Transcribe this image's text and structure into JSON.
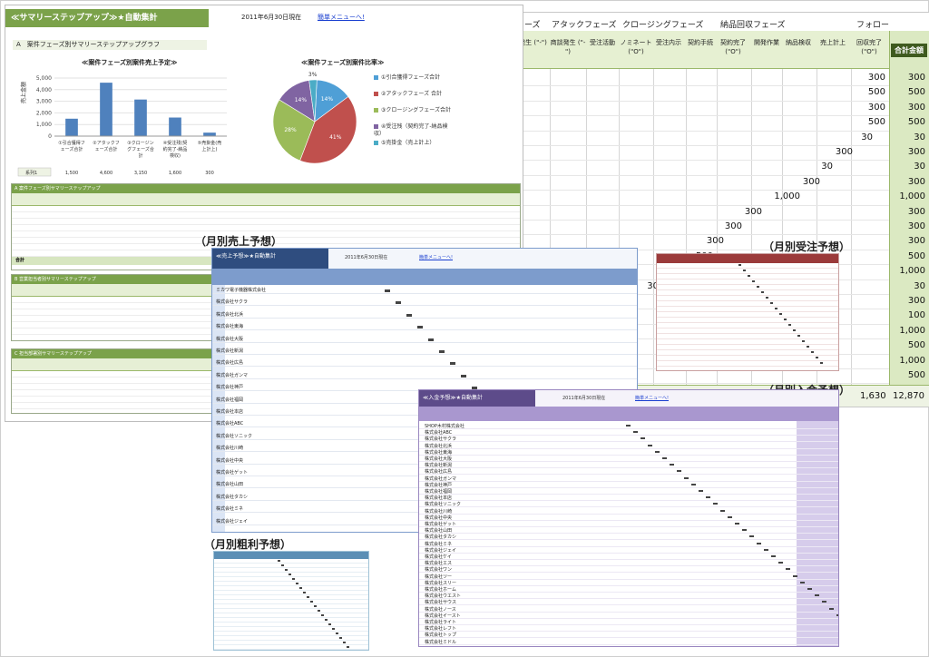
{
  "back_sheet": {
    "phases": [
      "ーズ",
      "アタックフェーズ",
      "クロージングフェーズ",
      "納品回収フェーズ",
      "フォロー"
    ],
    "headers": [
      "件発生\n(\"-\")",
      "商談発生\n(\"-\")",
      "受注活動",
      "ノミネート\n(\"O\")",
      "受注内示",
      "契約手続",
      "契約完了\n(\"O\")",
      "開発作業",
      "納品検収",
      "売上計上",
      "回収完了\n(\"O\")"
    ],
    "total_label": "合計金額",
    "rows": [
      {
        "col": "300",
        "total": "300"
      },
      {
        "col": "500",
        "total": "500"
      },
      {
        "col": "300",
        "total": "300"
      },
      {
        "col": "500",
        "total": "500"
      },
      {
        "col": "30",
        "total": "30"
      },
      {
        "col": "300",
        "total": "300"
      },
      {
        "col": "30",
        "total": "30"
      },
      {
        "col": "300",
        "total": "300"
      },
      {
        "col": "1,000",
        "total": "1,000"
      },
      {
        "col": "300",
        "total": "300"
      },
      {
        "col": "300",
        "total": "300"
      },
      {
        "col": "300",
        "total": "300"
      },
      {
        "col": "500",
        "total": "500"
      },
      {
        "col": "1,000",
        "total": "1,000"
      },
      {
        "col": "30",
        "total": "30"
      }
    ],
    "right_column_more": [
      "300",
      "100",
      "1,000",
      "500",
      "1,000",
      "500",
      "300",
      "1,000",
      "1,000",
      "1,000",
      "500"
    ],
    "footer": [
      "1,630",
      "12,870"
    ]
  },
  "summary_sheet": {
    "title": "≪サマリーステップアップ≫★自動集計",
    "date": "2011年6月30日現在",
    "menu_link": "簡単メニューへ!",
    "section_a": "A　案件フェーズ別サマリーステップアップグラフ",
    "bar_chart_title": "≪案件フェーズ別案件売上予定≫",
    "pie_chart_title": "≪案件フェーズ別案件比率≫",
    "y_axis_label": "売上金額",
    "series_label": "系列1",
    "legend": [
      "①引合獲得フェーズ合計",
      "②アタックフェーズ　合計",
      "③クロージングフェーズ合計",
      "④受注残（契約完了-納品検収）",
      "⑤売掛金（売上計上）"
    ],
    "table_titles": [
      "A 案件フェーズ別サマリーステップアップ",
      "B 営業担当者別サマリーステップアップ",
      "C 担当部署別サマリーステップアップ"
    ],
    "table_total": "合計",
    "colors": {
      "bar": "#4f81bd",
      "header": "#7ba24a"
    }
  },
  "chart_data": [
    {
      "type": "bar",
      "title": "≪案件フェーズ別案件売上予定≫",
      "ylabel": "売上金額",
      "categories": [
        "①引合獲得フェーズ合計",
        "②アタックフェーズ合計",
        "③クロージングフェーズ合計",
        "④受注残(契約完了-納品検収)",
        "⑤売掛金(売上計上)"
      ],
      "values": [
        1500,
        4600,
        3150,
        1600,
        300
      ],
      "value_labels": [
        "1,500",
        "4,600",
        "3,150",
        "1,600",
        "300"
      ],
      "ylim": [
        0,
        5000
      ],
      "yticks": [
        "5,000",
        "4,000",
        "3,000",
        "2,000",
        "1,000",
        "0"
      ],
      "grid": true
    },
    {
      "type": "pie",
      "title": "≪案件フェーズ別案件比率≫",
      "labels": [
        "①引合獲得フェーズ合計",
        "②アタックフェーズ 合計",
        "③クロージングフェーズ合計",
        "④受注残（契約完了-納品検収）",
        "⑤売掛金（売上計上）"
      ],
      "values": [
        14,
        41,
        28,
        14,
        3
      ],
      "value_labels": [
        "14%",
        "41%",
        "28%",
        "14%",
        "3%"
      ],
      "colors": [
        "#4f9fd6",
        "#c0504d",
        "#9bbb59",
        "#8064a2",
        "#4bacc6"
      ],
      "legend": "right"
    }
  ],
  "labels": {
    "sales": "（月別売上予想）",
    "receipt": "（月別受注予想）",
    "deposit": "（月別入会予想）",
    "margin": "（月別粗利予想）"
  },
  "sales_sheet": {
    "bar_text": "≪売上予想≫★自動集計",
    "top_date": "2011年6月30日現在",
    "top_link": "簡単メニューへ!",
    "rows": [
      "ミカワ電子機器株式会社",
      "株式会社サクラ",
      "株式会社北浜",
      "株式会社東海",
      "株式会社大阪",
      "株式会社新潟",
      "株式会社広島",
      "株式会社ガンマ",
      "株式会社神戸",
      "株式会社福岡",
      "株式会社本店",
      "株式会社ABC",
      "株式会社ソニック",
      "株式会社川崎",
      "株式会社中央",
      "株式会社ゲット",
      "株式会社山田",
      "株式会社タカシ",
      "株式会社ミネ",
      "株式会社ジェイ"
    ]
  },
  "deposit_sheet": {
    "bar_text": "≪入金予想≫★自動集計",
    "top_date": "2011年6月30日現在",
    "top_link": "簡単メニューへ!",
    "rows": [
      "SHOP木村株式会社",
      "株式会社ABC",
      "株式会社サクラ",
      "株式会社北浜",
      "株式会社東海",
      "株式会社大阪",
      "株式会社新潟",
      "株式会社広島",
      "株式会社ガンマ",
      "株式会社神戸",
      "株式会社福岡",
      "株式会社本店",
      "株式会社ソニック",
      "株式会社川崎",
      "株式会社中央",
      "株式会社ゲット",
      "株式会社山田",
      "株式会社タカシ",
      "株式会社ミネ",
      "株式会社ジェイ",
      "株式会社ケイ",
      "株式会社エス",
      "株式会社ワン",
      "株式会社ツー",
      "株式会社スリー",
      "株式会社ホーム",
      "株式会社ウエスト",
      "株式会社サウス",
      "株式会社ノース",
      "株式会社イースト",
      "株式会社ライト",
      "株式会社レフト",
      "株式会社トップ",
      "株式会社ミドル"
    ]
  }
}
